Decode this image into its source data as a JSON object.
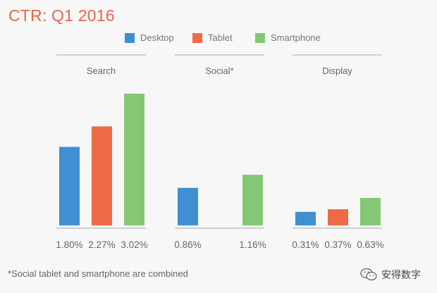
{
  "chart_data": {
    "type": "bar",
    "title": "CTR: Q1 2016",
    "groups": [
      "Search",
      "Social*",
      "Display"
    ],
    "series": [
      {
        "name": "Desktop",
        "color": "#3f8fd2",
        "values": [
          1.8,
          0.86,
          0.31
        ]
      },
      {
        "name": "Tablet",
        "color": "#ef6a47",
        "values": [
          2.27,
          null,
          0.37
        ]
      },
      {
        "name": "Smartphone",
        "color": "#84c874",
        "values": [
          3.02,
          1.16,
          0.63
        ]
      }
    ],
    "value_labels": [
      [
        "1.80%",
        "2.27%",
        "3.02%"
      ],
      [
        "0.86%",
        "",
        "1.16%"
      ],
      [
        "0.31%",
        "0.37%",
        "0.63%"
      ]
    ],
    "unit": "%",
    "footnote": "*Social tablet and smartphone are combined",
    "legend_position": "top-center"
  },
  "watermark": {
    "text": "安得数字",
    "icon": "wechat-icon"
  }
}
